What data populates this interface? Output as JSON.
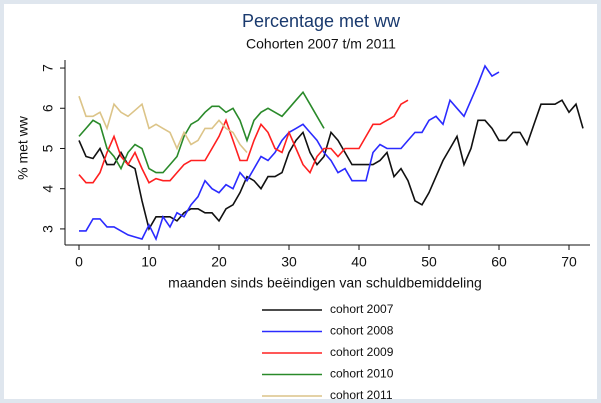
{
  "chart_data": {
    "type": "line",
    "title": "Percentage met ww",
    "subtitle": "Cohorten 2007 t/m 2011",
    "y_label": "% met ww",
    "x_label": "maanden sinds beëindigen van schuldbemiddeling",
    "x": [
      0,
      1,
      2,
      3,
      4,
      5,
      6,
      7,
      8,
      9,
      10,
      11,
      12,
      13,
      14,
      15,
      16,
      17,
      18,
      19,
      20,
      21,
      22,
      23,
      24,
      25,
      26,
      27,
      28,
      29,
      30,
      31,
      32,
      33,
      34,
      35,
      36,
      37,
      38,
      39,
      40,
      41,
      42,
      43,
      44,
      45,
      46,
      47,
      48,
      49,
      50,
      51,
      52,
      53,
      54,
      55,
      56,
      57,
      58,
      59,
      60,
      61,
      62,
      63,
      64,
      65,
      66,
      67,
      68,
      69,
      70,
      71,
      72
    ],
    "xlim": [
      -2,
      73
    ],
    "xticks": [
      0,
      10,
      20,
      30,
      40,
      50,
      60,
      70
    ],
    "ylim": [
      2.6,
      7.2
    ],
    "yticks": [
      3,
      4,
      5,
      6,
      7
    ],
    "grid": false,
    "legend": "bottom",
    "series": [
      {
        "name": "cohort 2007",
        "color": "#111111",
        "values": [
          5.2,
          4.8,
          4.75,
          5.0,
          4.6,
          4.6,
          4.9,
          4.6,
          4.5,
          3.7,
          3.0,
          3.3,
          3.3,
          3.3,
          3.2,
          3.4,
          3.5,
          3.5,
          3.4,
          3.4,
          3.2,
          3.5,
          3.6,
          3.9,
          4.3,
          4.2,
          4.0,
          4.3,
          4.3,
          4.4,
          4.9,
          5.2,
          5.4,
          4.9,
          4.6,
          4.8,
          5.4,
          5.2,
          4.9,
          4.6,
          4.6,
          4.6,
          4.6,
          4.7,
          4.9,
          4.3,
          4.5,
          4.2,
          3.7,
          3.6,
          3.9,
          4.3,
          4.7,
          5.0,
          5.3,
          4.6,
          5.0,
          5.7,
          5.7,
          5.5,
          5.2,
          5.2,
          5.4,
          5.4,
          5.1,
          5.6,
          6.1,
          6.1,
          6.1,
          6.2,
          5.9,
          6.1,
          5.5
        ]
      },
      {
        "name": "cohort 2008",
        "color": "#2b2bff",
        "values": [
          2.95,
          2.95,
          3.25,
          3.25,
          3.05,
          3.05,
          2.95,
          2.85,
          2.8,
          2.75,
          3.1,
          2.75,
          3.3,
          3.05,
          3.4,
          3.3,
          3.6,
          3.8,
          4.2,
          4.0,
          3.9,
          4.1,
          4.0,
          4.4,
          4.2,
          4.5,
          4.8,
          4.7,
          4.9,
          5.2,
          5.4,
          5.5,
          5.6,
          5.4,
          5.2,
          4.9,
          4.7,
          4.4,
          4.5,
          4.2,
          4.2,
          4.2,
          4.9,
          5.1,
          5.0,
          5.0,
          5.0,
          5.2,
          5.4,
          5.4,
          5.7,
          5.8,
          5.6,
          6.2,
          6.0,
          5.8,
          6.2,
          6.6,
          7.05,
          6.8,
          6.9,
          null,
          null,
          null,
          null,
          null,
          null,
          null,
          null,
          null,
          null,
          null,
          null
        ]
      },
      {
        "name": "cohort 2009",
        "color": "#ff2020",
        "values": [
          4.35,
          4.15,
          4.15,
          4.4,
          4.9,
          5.3,
          4.8,
          4.6,
          4.9,
          4.5,
          4.15,
          4.25,
          4.2,
          4.2,
          4.4,
          4.6,
          4.7,
          4.7,
          4.7,
          5.0,
          5.3,
          5.7,
          5.2,
          4.7,
          4.7,
          5.2,
          5.6,
          5.4,
          5.0,
          4.9,
          5.4,
          5.0,
          4.6,
          4.4,
          4.8,
          5.0,
          5.0,
          4.8,
          5.0,
          5.0,
          5.0,
          5.3,
          5.6,
          5.6,
          5.7,
          5.8,
          6.1,
          6.2,
          null,
          null,
          null,
          null,
          null,
          null,
          null,
          null,
          null,
          null,
          null,
          null,
          null,
          null,
          null,
          null,
          null,
          null,
          null,
          null,
          null,
          null,
          null,
          null,
          null
        ]
      },
      {
        "name": "cohort 2010",
        "color": "#2a8a2a",
        "values": [
          5.3,
          5.5,
          5.7,
          5.6,
          5.0,
          4.8,
          4.5,
          4.9,
          5.1,
          5.0,
          4.5,
          4.4,
          4.4,
          4.6,
          4.8,
          5.3,
          5.6,
          5.7,
          5.9,
          6.05,
          6.05,
          5.9,
          6.0,
          5.7,
          5.2,
          5.7,
          5.9,
          6.0,
          5.9,
          5.8,
          6.0,
          6.2,
          6.4,
          6.1,
          5.8,
          5.5,
          null,
          null,
          null,
          null,
          null,
          null,
          null,
          null,
          null,
          null,
          null,
          null,
          null,
          null,
          null,
          null,
          null,
          null,
          null,
          null,
          null,
          null,
          null,
          null,
          null,
          null,
          null,
          null,
          null,
          null,
          null,
          null,
          null,
          null,
          null,
          null,
          null
        ]
      },
      {
        "name": "cohort 2011",
        "color": "#dcc488",
        "values": [
          6.3,
          5.8,
          5.8,
          5.9,
          5.5,
          6.1,
          5.9,
          5.8,
          5.95,
          6.1,
          5.5,
          5.6,
          5.5,
          5.4,
          5.0,
          5.4,
          5.1,
          5.2,
          5.5,
          5.5,
          5.7,
          5.5,
          5.4,
          5.1,
          4.9,
          null,
          null,
          null,
          null,
          null,
          null,
          null,
          null,
          null,
          null,
          null,
          null,
          null,
          null,
          null,
          null,
          null,
          null,
          null,
          null,
          null,
          null,
          null,
          null,
          null,
          null,
          null,
          null,
          null,
          null,
          null,
          null,
          null,
          null,
          null,
          null,
          null,
          null,
          null,
          null,
          null,
          null,
          null,
          null,
          null,
          null,
          null,
          null
        ]
      }
    ]
  }
}
